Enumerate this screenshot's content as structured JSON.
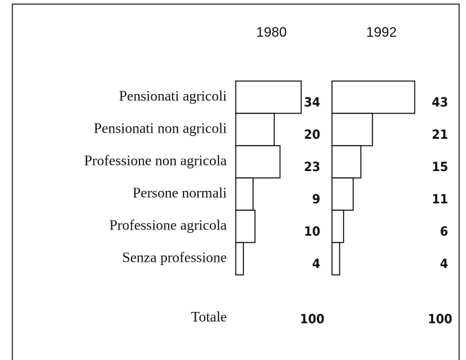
{
  "chart_data": {
    "type": "bar",
    "orientation": "horizontal",
    "categories": [
      "Pensionati agricoli",
      "Pensionati non agricoli",
      "Professione non agricola",
      "Persone normali",
      "Professione agricola",
      "Senza professione"
    ],
    "series": [
      {
        "name": "1980",
        "color": "#ffffff",
        "values": [
          34,
          20,
          23,
          9,
          10,
          4
        ]
      },
      {
        "name": "1992",
        "color": "#ffffff",
        "values": [
          43,
          21,
          15,
          11,
          6,
          4
        ]
      }
    ],
    "total_label": "Totale",
    "totals": [
      100,
      100
    ]
  }
}
